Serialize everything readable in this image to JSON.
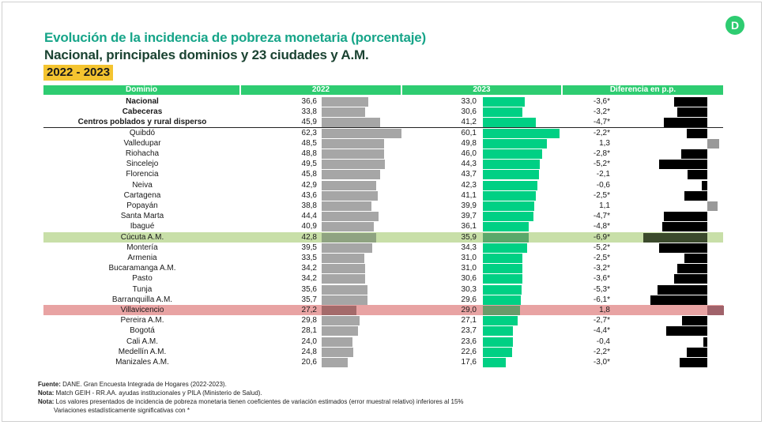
{
  "logo": "D",
  "title_line1": "Evolución de la incidencia de pobreza monetaria (porcentaje)",
  "title_line2": "Nacional, principales dominios y 23 ciudades y A.M.",
  "years": "2022 - 2023",
  "headers": {
    "domain": "Dominio",
    "y2022": "2022",
    "y2023": "2023",
    "diff": "Diferencia en p.p."
  },
  "chart_data": {
    "type": "bar",
    "series_names": [
      "2022",
      "2023",
      "Diferencia en p.p."
    ],
    "rows": [
      {
        "domain": "Nacional",
        "y2022": 36.6,
        "y2023": 33.0,
        "diff": -3.6,
        "v2022": "36,6",
        "v2023": "33,0",
        "diff_label": "-3,6*",
        "bold": true
      },
      {
        "domain": "Cabeceras",
        "y2022": 33.8,
        "y2023": 30.6,
        "diff": -3.2,
        "v2022": "33,8",
        "v2023": "30,6",
        "diff_label": "-3,2*",
        "bold": true
      },
      {
        "domain": "Centros poblados y rural disperso",
        "y2022": 45.9,
        "y2023": 41.2,
        "diff": -4.7,
        "v2022": "45,9",
        "v2023": "41,2",
        "diff_label": "-4,7*",
        "bold": true
      },
      {
        "domain": "Quibdó",
        "y2022": 62.3,
        "y2023": 60.1,
        "diff": -2.2,
        "v2022": "62,3",
        "v2023": "60,1",
        "diff_label": "-2,2*"
      },
      {
        "domain": "Valledupar",
        "y2022": 48.5,
        "y2023": 49.8,
        "diff": 1.3,
        "v2022": "48,5",
        "v2023": "49,8",
        "diff_label": "1,3"
      },
      {
        "domain": "Riohacha",
        "y2022": 48.8,
        "y2023": 46.0,
        "diff": -2.8,
        "v2022": "48,8",
        "v2023": "46,0",
        "diff_label": "-2,8*"
      },
      {
        "domain": "Sincelejo",
        "y2022": 49.5,
        "y2023": 44.3,
        "diff": -5.2,
        "v2022": "49,5",
        "v2023": "44,3",
        "diff_label": "-5,2*"
      },
      {
        "domain": "Florencia",
        "y2022": 45.8,
        "y2023": 43.7,
        "diff": -2.1,
        "v2022": "45,8",
        "v2023": "43,7",
        "diff_label": "-2,1"
      },
      {
        "domain": "Neiva",
        "y2022": 42.9,
        "y2023": 42.3,
        "diff": -0.6,
        "v2022": "42,9",
        "v2023": "42,3",
        "diff_label": "-0,6"
      },
      {
        "domain": "Cartagena",
        "y2022": 43.6,
        "y2023": 41.1,
        "diff": -2.5,
        "v2022": "43,6",
        "v2023": "41,1",
        "diff_label": "-2,5*"
      },
      {
        "domain": "Popayán",
        "y2022": 38.8,
        "y2023": 39.9,
        "diff": 1.1,
        "v2022": "38,8",
        "v2023": "39,9",
        "diff_label": "1,1"
      },
      {
        "domain": "Santa Marta",
        "y2022": 44.4,
        "y2023": 39.7,
        "diff": -4.7,
        "v2022": "44,4",
        "v2023": "39,7",
        "diff_label": "-4,7*"
      },
      {
        "domain": "Ibagué",
        "y2022": 40.9,
        "y2023": 36.1,
        "diff": -4.8,
        "v2022": "40,9",
        "v2023": "36,1",
        "diff_label": "-4,8*"
      },
      {
        "domain": "Cúcuta A.M.",
        "y2022": 42.8,
        "y2023": 35.9,
        "diff": -6.9,
        "v2022": "42,8",
        "v2023": "35,9",
        "diff_label": "-6,9*",
        "highlight": "green"
      },
      {
        "domain": "Montería",
        "y2022": 39.5,
        "y2023": 34.3,
        "diff": -5.2,
        "v2022": "39,5",
        "v2023": "34,3",
        "diff_label": "-5,2*"
      },
      {
        "domain": "Armenia",
        "y2022": 33.5,
        "y2023": 31.0,
        "diff": -2.5,
        "v2022": "33,5",
        "v2023": "31,0",
        "diff_label": "-2,5*"
      },
      {
        "domain": "Bucaramanga A.M.",
        "y2022": 34.2,
        "y2023": 31.0,
        "diff": -3.2,
        "v2022": "34,2",
        "v2023": "31,0",
        "diff_label": "-3,2*"
      },
      {
        "domain": "Pasto",
        "y2022": 34.2,
        "y2023": 30.6,
        "diff": -3.6,
        "v2022": "34,2",
        "v2023": "30,6",
        "diff_label": "-3,6*"
      },
      {
        "domain": "Tunja",
        "y2022": 35.6,
        "y2023": 30.3,
        "diff": -5.3,
        "v2022": "35,6",
        "v2023": "30,3",
        "diff_label": "-5,3*"
      },
      {
        "domain": "Barranquilla A.M.",
        "y2022": 35.7,
        "y2023": 29.6,
        "diff": -6.1,
        "v2022": "35,7",
        "v2023": "29,6",
        "diff_label": "-6,1*"
      },
      {
        "domain": "Villavicencio",
        "y2022": 27.2,
        "y2023": 29.0,
        "diff": 1.8,
        "v2022": "27,2",
        "v2023": "29,0",
        "diff_label": "1,8",
        "highlight": "red"
      },
      {
        "domain": "Pereira A.M.",
        "y2022": 29.8,
        "y2023": 27.1,
        "diff": -2.7,
        "v2022": "29,8",
        "v2023": "27,1",
        "diff_label": "-2,7*"
      },
      {
        "domain": "Bogotá",
        "y2022": 28.1,
        "y2023": 23.7,
        "diff": -4.4,
        "v2022": "28,1",
        "v2023": "23,7",
        "diff_label": "-4,4*"
      },
      {
        "domain": "Cali A.M.",
        "y2022": 24.0,
        "y2023": 23.6,
        "diff": -0.4,
        "v2022": "24,0",
        "v2023": "23,6",
        "diff_label": "-0,4"
      },
      {
        "domain": "Medellín A.M.",
        "y2022": 24.8,
        "y2023": 22.6,
        "diff": -2.2,
        "v2022": "24,8",
        "v2023": "22,6",
        "diff_label": "-2,2*"
      },
      {
        "domain": "Manizales A.M.",
        "y2022": 20.6,
        "y2023": 17.6,
        "diff": -3.0,
        "v2022": "20,6",
        "v2023": "17,6",
        "diff_label": "-3,0*"
      }
    ]
  },
  "notes": {
    "fuente_label": "Fuente:",
    "fuente_text": " DANE. Gran Encuesta Integrada de Hogares (2022-2023).",
    "nota1_label": "Nota:",
    "nota1_text": " Match GEIH - RR.AA. ayudas institucionales y PILA (Ministerio de Salud).",
    "nota2_label": "Nota:",
    "nota2_text": " Los valores presentados de incidencia de pobreza monetaria tienen coeficientes de variación estimados (error muestral relativo) inferiores al 15%",
    "nota2_cont": "Variaciones estadísticamente significativas con *"
  }
}
